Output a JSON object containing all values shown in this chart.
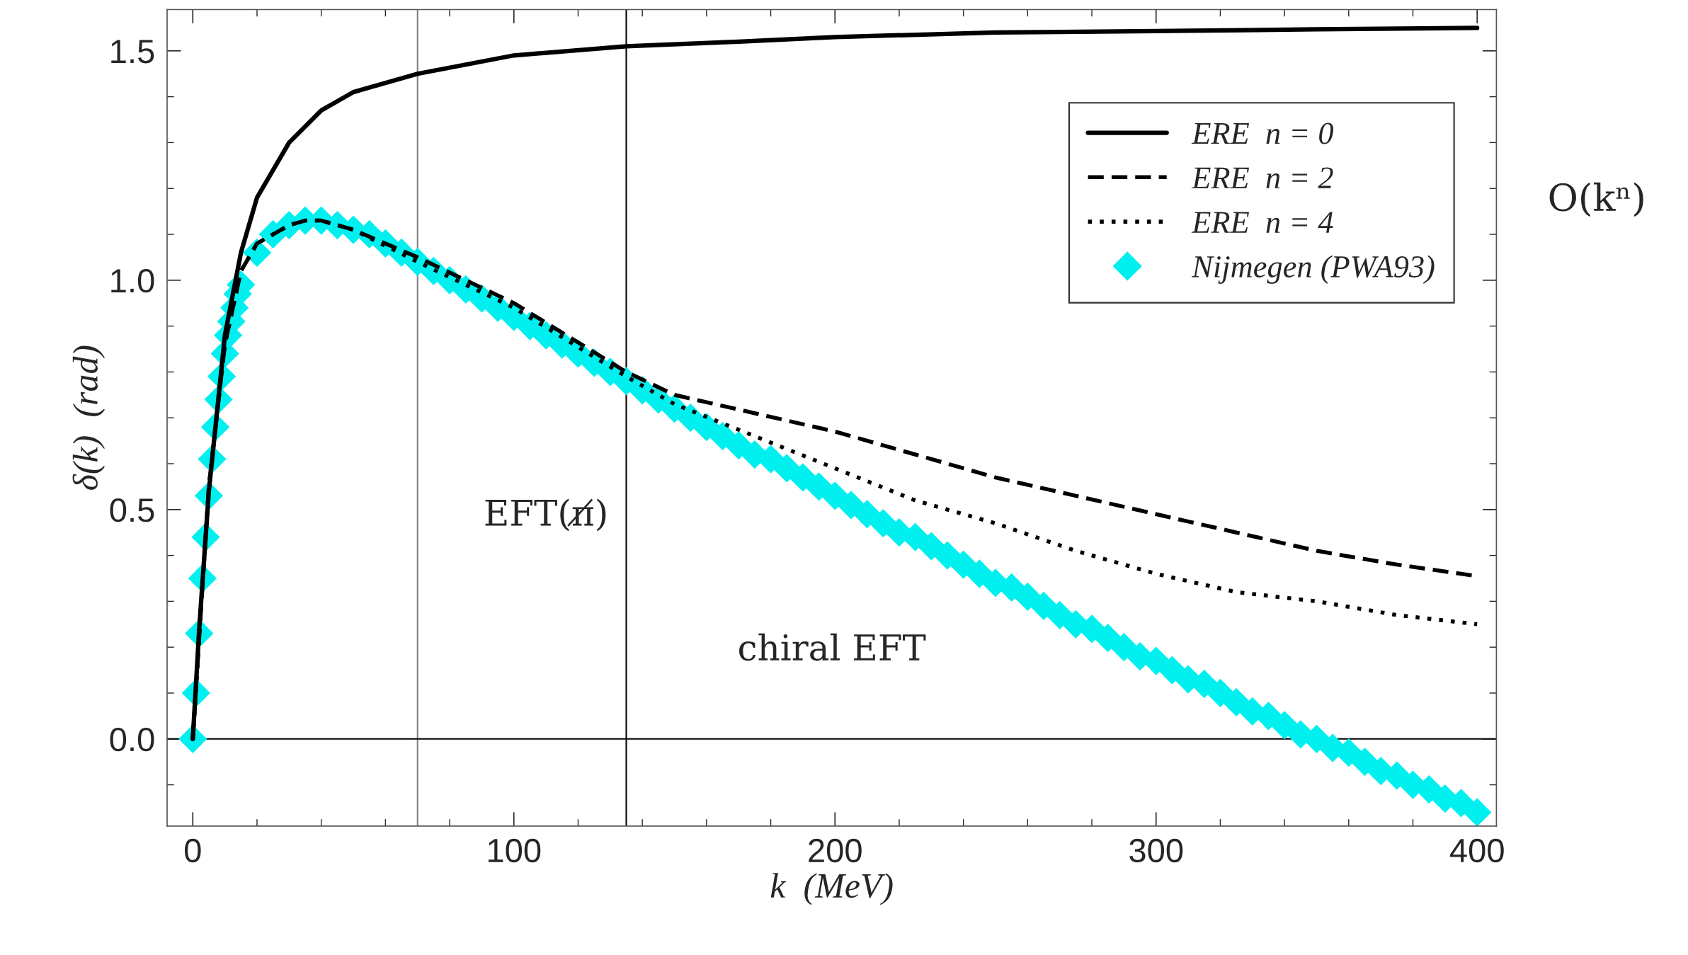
{
  "chart_data": {
    "type": "line",
    "xlabel": "k  (MeV)",
    "ylabel": "δ(k)  (rad)",
    "xlim": [
      -8,
      406
    ],
    "ylim": [
      -0.19,
      1.59
    ],
    "xticks": [
      0,
      100,
      200,
      300,
      400
    ],
    "yticks": [
      {
        "value": 0,
        "label": "0.0"
      },
      0.5,
      {
        "value": 1,
        "label": "1.0"
      },
      1.5
    ],
    "series": [
      {
        "name": "ERE  n = 0",
        "line_style": "solid",
        "color": "#000000",
        "x": [
          0,
          2,
          5,
          10,
          15,
          20,
          30,
          40,
          50,
          70,
          100,
          135,
          170,
          200,
          250,
          300,
          350,
          400
        ],
        "values": [
          0,
          0.24,
          0.54,
          0.88,
          1.06,
          1.18,
          1.3,
          1.37,
          1.41,
          1.45,
          1.49,
          1.51,
          1.52,
          1.53,
          1.54,
          1.543,
          1.547,
          1.55
        ]
      },
      {
        "name": "ERE  n = 2",
        "line_style": "dashed",
        "color": "#000000",
        "x": [
          0,
          5,
          10,
          15,
          20,
          30,
          35,
          40,
          50,
          70,
          100,
          135,
          150,
          175,
          200,
          225,
          250,
          275,
          300,
          325,
          350,
          375,
          400
        ],
        "values": [
          0,
          0.55,
          0.86,
          1.02,
          1.08,
          1.12,
          1.13,
          1.13,
          1.11,
          1.05,
          0.95,
          0.8,
          0.75,
          0.71,
          0.67,
          0.62,
          0.57,
          0.53,
          0.49,
          0.45,
          0.41,
          0.38,
          0.355
        ]
      },
      {
        "name": "ERE  n = 4",
        "line_style": "dotted",
        "color": "#000000",
        "x": [
          0,
          5,
          10,
          15,
          20,
          30,
          35,
          40,
          50,
          70,
          100,
          135,
          150,
          175,
          200,
          225,
          250,
          275,
          300,
          325,
          350,
          375,
          400
        ],
        "values": [
          0,
          0.55,
          0.86,
          1.02,
          1.08,
          1.12,
          1.13,
          1.13,
          1.11,
          1.04,
          0.94,
          0.79,
          0.73,
          0.66,
          0.59,
          0.52,
          0.47,
          0.41,
          0.36,
          0.32,
          0.3,
          0.27,
          0.25
        ]
      },
      {
        "name": "Nijmegen (PWA93)",
        "type": "scatter",
        "marker": "diamond",
        "color": "#00f0f0",
        "x": [
          0,
          1,
          2,
          3,
          4,
          5,
          6,
          7,
          8,
          9,
          10,
          11,
          12,
          13,
          14,
          15,
          20,
          25,
          30,
          35,
          40,
          45,
          50,
          55,
          60,
          65,
          70,
          75,
          80,
          85,
          90,
          95,
          100,
          105,
          110,
          115,
          120,
          125,
          130,
          135,
          140,
          145,
          150,
          155,
          160,
          165,
          170,
          175,
          180,
          185,
          190,
          195,
          200,
          205,
          210,
          215,
          220,
          225,
          230,
          235,
          240,
          245,
          250,
          255,
          260,
          265,
          270,
          275,
          280,
          285,
          290,
          295,
          300,
          305,
          310,
          315,
          320,
          325,
          330,
          335,
          340,
          345,
          350,
          355,
          360,
          365,
          370,
          375,
          380,
          385,
          390,
          395,
          400
        ],
        "values": [
          0,
          0.1,
          0.23,
          0.35,
          0.44,
          0.53,
          0.61,
          0.68,
          0.74,
          0.79,
          0.84,
          0.88,
          0.91,
          0.94,
          0.97,
          0.99,
          1.06,
          1.1,
          1.12,
          1.13,
          1.13,
          1.12,
          1.11,
          1.1,
          1.08,
          1.06,
          1.04,
          1.02,
          1.0,
          0.98,
          0.96,
          0.94,
          0.92,
          0.9,
          0.88,
          0.86,
          0.84,
          0.82,
          0.8,
          0.78,
          0.76,
          0.74,
          0.72,
          0.7,
          0.68,
          0.66,
          0.64,
          0.62,
          0.61,
          0.59,
          0.57,
          0.55,
          0.53,
          0.51,
          0.49,
          0.47,
          0.45,
          0.44,
          0.42,
          0.4,
          0.38,
          0.36,
          0.34,
          0.33,
          0.31,
          0.29,
          0.27,
          0.25,
          0.24,
          0.22,
          0.2,
          0.18,
          0.17,
          0.15,
          0.13,
          0.12,
          0.1,
          0.08,
          0.06,
          0.05,
          0.03,
          0.01,
          0.0,
          -0.02,
          -0.03,
          -0.05,
          -0.07,
          -0.08,
          -0.1,
          -0.11,
          -0.13,
          -0.14,
          -0.16
        ]
      }
    ],
    "ref_lines": [
      {
        "axis": "x",
        "value": 70,
        "color": "#808080"
      },
      {
        "axis": "x",
        "value": 135,
        "color": "#000000"
      },
      {
        "axis": "y",
        "value": 0,
        "color": "#000000"
      }
    ],
    "annotations": [
      "EFT(π̸)",
      "chiral EFT",
      "O(kⁿ)"
    ],
    "legend": "top right",
    "grid": false
  }
}
